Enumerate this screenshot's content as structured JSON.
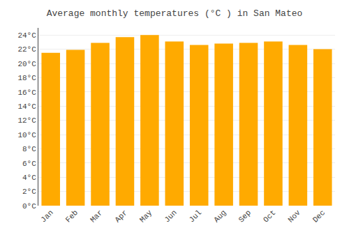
{
  "chart_data": {
    "type": "bar",
    "title": "Average monthly temperatures (°C ) in San Mateo",
    "categories": [
      "Jan",
      "Feb",
      "Mar",
      "Apr",
      "May",
      "Jun",
      "Jul",
      "Aug",
      "Sep",
      "Oct",
      "Nov",
      "Dec"
    ],
    "values": [
      21.5,
      21.9,
      22.9,
      23.7,
      24.0,
      23.1,
      22.6,
      22.8,
      22.9,
      23.1,
      22.6,
      22.0
    ],
    "color": "#FFAA00",
    "ylim": [
      0,
      25
    ],
    "yticks": [
      {
        "value": 0,
        "label": "0°C"
      },
      {
        "value": 2,
        "label": "2°C"
      },
      {
        "value": 4,
        "label": "4°C"
      },
      {
        "value": 6,
        "label": "6°C"
      },
      {
        "value": 8,
        "label": "8°C"
      },
      {
        "value": 10,
        "label": "10°C"
      },
      {
        "value": 12,
        "label": "12°C"
      },
      {
        "value": 14,
        "label": "14°C"
      },
      {
        "value": 16,
        "label": "16°C"
      },
      {
        "value": 18,
        "label": "18°C"
      },
      {
        "value": 20,
        "label": "20°C"
      },
      {
        "value": 22,
        "label": "22°C"
      },
      {
        "value": 24,
        "label": "24°C"
      }
    ],
    "grid": true
  }
}
